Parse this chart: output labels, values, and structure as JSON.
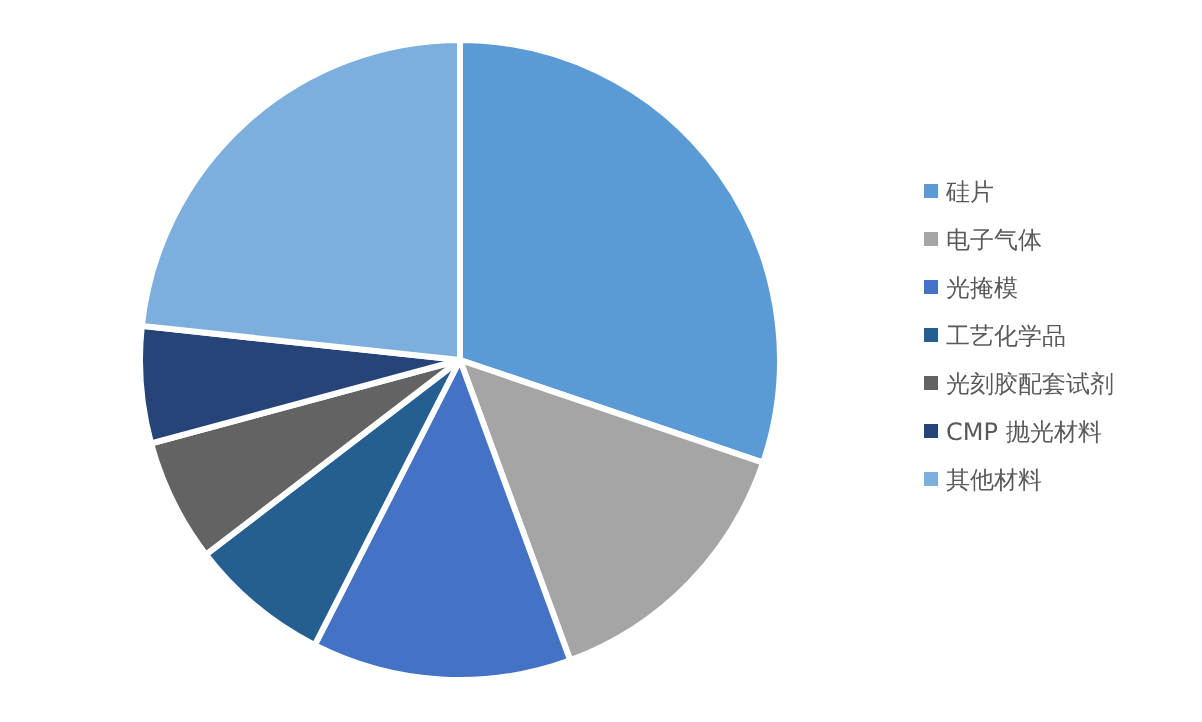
{
  "chart_data": {
    "type": "pie",
    "categories": [
      "硅片",
      "电子气体",
      "光掩模",
      "工艺化学品",
      "光刻胶配套试剂",
      "CMP 抛光材料",
      "其他材料"
    ],
    "values": [
      30.2,
      14.2,
      13.1,
      7.1,
      6.2,
      5.9,
      23.3
    ],
    "colors": [
      "#5b9bd5",
      "#a5a5a5",
      "#4472c4",
      "#255e91",
      "#636363",
      "#264478",
      "#7cafdd"
    ],
    "legend": "right"
  }
}
